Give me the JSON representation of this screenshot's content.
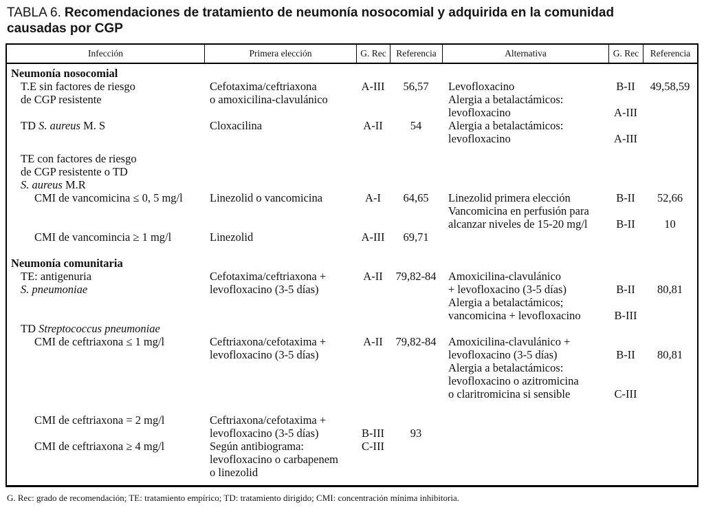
{
  "title": {
    "prefix": "TABLA 6.",
    "main": "Recomendaciones de tratamiento de neumonía nosocomial y adquirida en la comunidad causadas por CGP"
  },
  "table": {
    "headers": [
      "Infección",
      "Primera elección",
      "G. Rec",
      "Referencia",
      "Alternativa",
      "G. Rec",
      "Referencia"
    ],
    "blocks": [
      {
        "gap": 0,
        "indent": 0,
        "cells": {
          "infeccion": [
            {
              "b": "Neumonía nosocomial"
            }
          ]
        }
      },
      {
        "gap": 0,
        "indent": 1,
        "cells": {
          "infeccion": [
            "T.E sin factores de riesgo",
            "de CGP resistente"
          ],
          "primera": [
            "Cefotaxima/ceftriaxona",
            "o amoxicilina-clavulánico"
          ],
          "grec1": [
            "A-III"
          ],
          "ref1": [
            "56,57"
          ],
          "alternativa": [
            "Levofloxacino",
            "Alergia a betalactámicos:",
            "levofloxacino"
          ],
          "grec2": [
            "B-II",
            "",
            "A-III"
          ],
          "ref2": [
            "49,58,59"
          ]
        }
      },
      {
        "gap": 0,
        "indent": 1,
        "cells": {
          "infeccion": [
            [
              {
                "t": "TD "
              },
              {
                "i": "S. aureus"
              },
              {
                "t": " M. S"
              }
            ]
          ],
          "primera": [
            "Cloxacilina"
          ],
          "grec1": [
            "A-II"
          ],
          "ref1": [
            "54"
          ],
          "alternativa": [
            "Alergia a betalactámicos:",
            "levofloxacino"
          ],
          "grec2": [
            "",
            "A-III"
          ]
        }
      },
      {
        "gap": 10,
        "indent": 1,
        "cells": {
          "infeccion": [
            "TE con factores de riesgo",
            "de CGP resistente o TD",
            [
              {
                "i": "S. aureus"
              },
              {
                "t": " M.R"
              }
            ]
          ]
        }
      },
      {
        "gap": 0,
        "indent": 2,
        "cells": {
          "infeccion": [
            "CMI de vancomicina ≤ 0, 5 mg/l"
          ],
          "primera": [
            "Linezolid o vancomicina"
          ],
          "grec1": [
            "A-I"
          ],
          "ref1": [
            "64,65"
          ],
          "alternativa": [
            "Linezolid primera elección",
            "Vancomicina en perfusión para",
            "alcanzar niveles de 15-20 mg/l"
          ],
          "grec2": [
            "B-II",
            "",
            "B-II"
          ],
          "ref2": [
            "52,66",
            "",
            "10"
          ]
        }
      },
      {
        "gap": 0,
        "indent": 2,
        "cells": {
          "infeccion": [
            "CMI de vancomincia ≥ 1 mg/l"
          ],
          "primera": [
            "Linezolid"
          ],
          "grec1": [
            "A-III"
          ],
          "ref1": [
            "69,71"
          ]
        }
      },
      {
        "gap": 19,
        "indent": 0,
        "cells": {
          "infeccion": [
            {
              "b": "Neumonía comunitaria"
            }
          ]
        }
      },
      {
        "gap": 0,
        "indent": 1,
        "cells": {
          "infeccion": [
            "TE: antigenuria",
            [
              {
                "i": "S. pneumoniae"
              }
            ]
          ],
          "primera": [
            "Cefotaxima/ceftriaxona +",
            "levofloxacino (3-5 días)"
          ],
          "grec1": [
            "A-II"
          ],
          "ref1": [
            "79,82-84"
          ],
          "alternativa": [
            "Amoxicilina-clavulánico",
            "+ levofloxacino (3-5 días)",
            "Alergia a betalactámicos;",
            "vancomicina + levofloxacino"
          ],
          "grec2": [
            "",
            "B-II",
            "",
            "B-III"
          ],
          "ref2": [
            "",
            "80,81"
          ]
        }
      },
      {
        "gap": 0,
        "indent": 1,
        "cells": {
          "infeccion": [
            [
              {
                "t": "TD "
              },
              {
                "i": "Streptococcus pneumoniae"
              }
            ]
          ]
        }
      },
      {
        "gap": 0,
        "indent": 2,
        "cells": {
          "infeccion": [
            "CMI de ceftriaxona ≤ 1 mg/l"
          ],
          "primera": [
            "Ceftriaxona/cefotaxima +",
            "levofloxacino (3-5 días)"
          ],
          "grec1": [
            "A-II"
          ],
          "ref1": [
            "79,82-84"
          ],
          "alternativa": [
            "Amoxicilina-clavulánico +",
            "levofloxacino (3-5 días)",
            "Alergia a betalactámicos:",
            "levofloxacino o azitromicina",
            "o claritromicina si sensible"
          ],
          "grec2": [
            "",
            "B-II",
            "",
            "",
            "C-III"
          ],
          "ref2": [
            "",
            "80,81"
          ]
        }
      },
      {
        "gap": 19,
        "indent": 2,
        "cells": {
          "infeccion": [
            "CMI de ceftriaxona = 2 mg/l",
            "",
            "CMI de ceftriaxona ≥ 4 mg/l"
          ],
          "primera": [
            "Ceftriaxona/cefotaxima +",
            "levofloxacino (3-5 días)",
            "Según antibiograma:",
            "levofloxacino o carbapenem",
            "o linezolid"
          ],
          "grec1": [
            "",
            "B-III",
            "C-III"
          ],
          "ref1": [
            "",
            "93"
          ]
        }
      }
    ]
  },
  "footnote": "G. Rec: grado de recomendación; TE: tratamiento empírico; TD: tratamiento dirigido; CMI: concentración mínima inhibitoria."
}
